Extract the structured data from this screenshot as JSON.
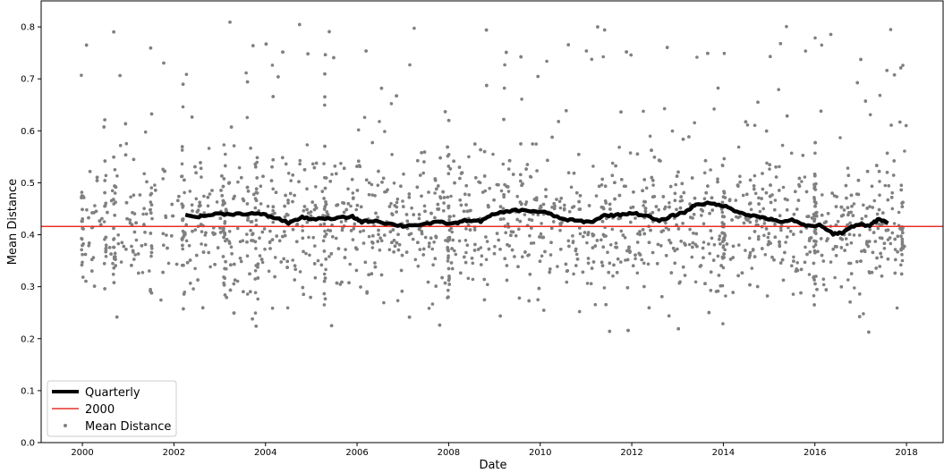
{
  "chart_data": {
    "type": "scatter",
    "title": "",
    "xlabel": "Date",
    "ylabel": "Mean Distance",
    "xlim": [
      1999.1,
      2018.8
    ],
    "ylim": [
      0.0,
      0.85
    ],
    "x_ticks": [
      "2000",
      "2002",
      "2004",
      "2006",
      "2008",
      "2010",
      "2012",
      "2014",
      "2016",
      "2018"
    ],
    "y_ticks": [
      "0.0",
      "0.1",
      "0.2",
      "0.3",
      "0.4",
      "0.5",
      "0.6",
      "0.7",
      "0.8"
    ],
    "grid": false,
    "legend_position": "lower-left",
    "series": [
      {
        "name": "Quarterly",
        "kind": "line",
        "color": "#000000",
        "points": [
          [
            2002.25,
            0.437
          ],
          [
            2002.6,
            0.435
          ],
          [
            2002.9,
            0.44
          ],
          [
            2003.3,
            0.44
          ],
          [
            2003.7,
            0.441
          ],
          [
            2004.0,
            0.438
          ],
          [
            2004.3,
            0.43
          ],
          [
            2004.5,
            0.423
          ],
          [
            2004.8,
            0.433
          ],
          [
            2005.1,
            0.43
          ],
          [
            2005.5,
            0.431
          ],
          [
            2005.9,
            0.435
          ],
          [
            2006.1,
            0.425
          ],
          [
            2006.4,
            0.427
          ],
          [
            2006.7,
            0.421
          ],
          [
            2007.0,
            0.417
          ],
          [
            2007.4,
            0.42
          ],
          [
            2007.8,
            0.424
          ],
          [
            2008.1,
            0.421
          ],
          [
            2008.4,
            0.428
          ],
          [
            2008.7,
            0.426
          ],
          [
            2009.0,
            0.44
          ],
          [
            2009.4,
            0.447
          ],
          [
            2009.8,
            0.446
          ],
          [
            2010.1,
            0.443
          ],
          [
            2010.5,
            0.43
          ],
          [
            2010.8,
            0.427
          ],
          [
            2011.1,
            0.424
          ],
          [
            2011.4,
            0.437
          ],
          [
            2011.7,
            0.438
          ],
          [
            2012.0,
            0.442
          ],
          [
            2012.3,
            0.437
          ],
          [
            2012.6,
            0.426
          ],
          [
            2012.9,
            0.437
          ],
          [
            2013.2,
            0.445
          ],
          [
            2013.4,
            0.459
          ],
          [
            2013.7,
            0.46
          ],
          [
            2014.0,
            0.456
          ],
          [
            2014.3,
            0.445
          ],
          [
            2014.6,
            0.437
          ],
          [
            2014.9,
            0.433
          ],
          [
            2015.2,
            0.425
          ],
          [
            2015.5,
            0.428
          ],
          [
            2015.8,
            0.417
          ],
          [
            2016.1,
            0.418
          ],
          [
            2016.4,
            0.402
          ],
          [
            2016.6,
            0.404
          ],
          [
            2016.9,
            0.42
          ],
          [
            2017.2,
            0.418
          ],
          [
            2017.4,
            0.43
          ],
          [
            2017.6,
            0.422
          ]
        ]
      },
      {
        "name": "2000",
        "kind": "hline",
        "color": "#e8302a",
        "y": 0.416
      },
      {
        "name": "Mean Distance",
        "kind": "scatter",
        "color": "#808080",
        "count": 3200,
        "mean": 0.42,
        "std": 0.12,
        "range": [
          0.2,
          0.84
        ]
      }
    ]
  }
}
